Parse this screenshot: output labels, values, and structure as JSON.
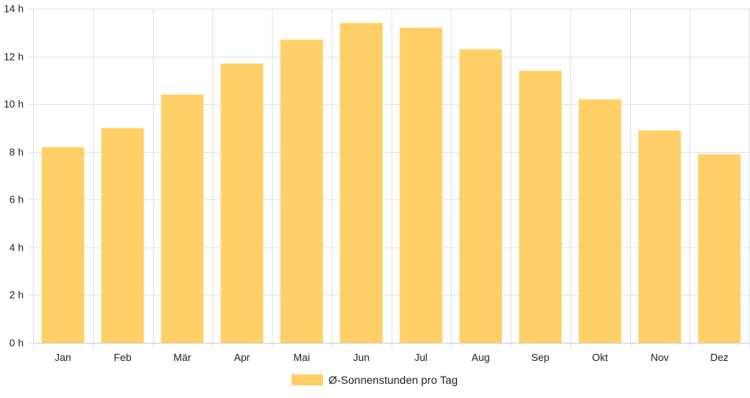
{
  "chart_data": {
    "type": "bar",
    "title": "",
    "xlabel": "",
    "ylabel": "",
    "categories": [
      "Jan",
      "Feb",
      "Mär",
      "Apr",
      "Mai",
      "Jun",
      "Jul",
      "Aug",
      "Sep",
      "Okt",
      "Nov",
      "Dez"
    ],
    "series": [
      {
        "name": "Ø-Sonnenstunden pro Tag",
        "color": "#fed067",
        "values": [
          8.2,
          9.0,
          10.4,
          11.7,
          12.7,
          13.4,
          13.2,
          12.3,
          11.4,
          10.2,
          8.9,
          7.9
        ]
      }
    ],
    "ylim": [
      0,
      14
    ],
    "y_ticks": [
      0,
      2,
      4,
      6,
      8,
      10,
      12,
      14
    ],
    "y_tick_suffix": " h",
    "grid": true,
    "legend_position": "bottom-center"
  }
}
